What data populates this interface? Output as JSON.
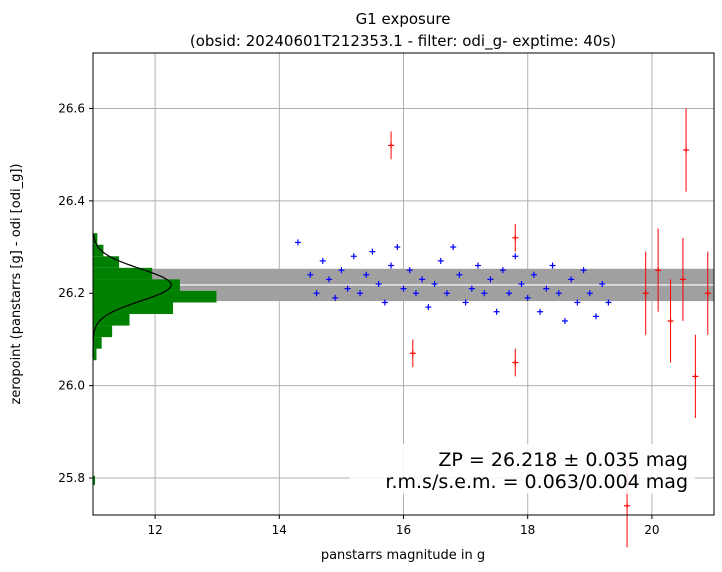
{
  "chart_data": {
    "type": "scatter",
    "title": "G1 exposure",
    "subtitle": "(obsid: 20240601T212353.1 - filter: odi_g- exptime: 40s)",
    "xlabel": "panstarrs magnitude in g",
    "ylabel": "zeropoint (panstarrs [g] - odi [odi_g])",
    "xlim": [
      11.0,
      21.0
    ],
    "ylim": [
      25.72,
      26.72
    ],
    "x_ticks": [
      "12",
      "14",
      "16",
      "18",
      "20"
    ],
    "x_tick_values": [
      12,
      14,
      16,
      18,
      20
    ],
    "y_ticks": [
      "25.8",
      "26.0",
      "26.2",
      "26.4",
      "26.6"
    ],
    "y_tick_values": [
      25.8,
      26.0,
      26.2,
      26.4,
      26.6
    ],
    "grid": true,
    "zeropoint": 26.218,
    "zeropoint_band": [
      26.183,
      26.253
    ],
    "annotation_line1": "ZP = 26.218 ± 0.035 mag",
    "annotation_line2": "r.m.s/s.e.m. = 0.063/0.004 mag",
    "colors": {
      "used_stars": "#0000ff",
      "rejected_stars": "#ff0000",
      "histogram": "#008000",
      "band": "#a0a0a0",
      "zp_line": "#ffffff",
      "gaussian": "#000000"
    },
    "histogram": {
      "y_bins": [
        [
          26.305,
          26.33,
          0.05
        ],
        [
          26.28,
          26.305,
          0.12
        ],
        [
          26.255,
          26.28,
          0.3
        ],
        [
          26.23,
          26.255,
          0.68
        ],
        [
          26.205,
          26.23,
          1.0
        ],
        [
          26.18,
          26.205,
          1.42
        ],
        [
          26.155,
          26.18,
          0.92
        ],
        [
          26.13,
          26.155,
          0.42
        ],
        [
          26.105,
          26.13,
          0.22
        ],
        [
          26.08,
          26.105,
          0.1
        ],
        [
          26.055,
          26.08,
          0.04
        ]
      ],
      "outlier_bin": [
        25.785,
        25.805,
        0.02
      ]
    },
    "used_stars_points": [
      [
        14.3,
        26.31
      ],
      [
        14.5,
        26.24
      ],
      [
        14.6,
        26.2
      ],
      [
        14.7,
        26.27
      ],
      [
        14.8,
        26.23
      ],
      [
        14.9,
        26.19
      ],
      [
        15.0,
        26.25
      ],
      [
        15.1,
        26.21
      ],
      [
        15.2,
        26.28
      ],
      [
        15.3,
        26.2
      ],
      [
        15.4,
        26.24
      ],
      [
        15.5,
        26.29
      ],
      [
        15.6,
        26.22
      ],
      [
        15.7,
        26.18
      ],
      [
        15.8,
        26.26
      ],
      [
        15.9,
        26.3
      ],
      [
        16.0,
        26.21
      ],
      [
        16.1,
        26.25
      ],
      [
        16.2,
        26.2
      ],
      [
        16.3,
        26.23
      ],
      [
        16.4,
        26.17
      ],
      [
        16.5,
        26.22
      ],
      [
        16.6,
        26.27
      ],
      [
        16.7,
        26.2
      ],
      [
        16.8,
        26.3
      ],
      [
        16.9,
        26.24
      ],
      [
        17.0,
        26.18
      ],
      [
        17.1,
        26.21
      ],
      [
        17.2,
        26.26
      ],
      [
        17.3,
        26.2
      ],
      [
        17.4,
        26.23
      ],
      [
        17.5,
        26.16
      ],
      [
        17.6,
        26.25
      ],
      [
        17.7,
        26.2
      ],
      [
        17.8,
        26.28
      ],
      [
        17.9,
        26.22
      ],
      [
        18.0,
        26.19
      ],
      [
        18.1,
        26.24
      ],
      [
        18.2,
        26.16
      ],
      [
        18.3,
        26.21
      ],
      [
        18.4,
        26.26
      ],
      [
        18.5,
        26.2
      ],
      [
        18.6,
        26.14
      ],
      [
        18.7,
        26.23
      ],
      [
        18.8,
        26.18
      ],
      [
        18.9,
        26.25
      ],
      [
        19.0,
        26.2
      ],
      [
        19.1,
        26.15
      ],
      [
        19.2,
        26.22
      ],
      [
        19.3,
        26.18
      ]
    ],
    "rejected_stars_points": [
      [
        15.8,
        26.52
      ],
      [
        16.15,
        26.07
      ],
      [
        17.8,
        26.32
      ],
      [
        17.8,
        26.05
      ],
      [
        19.6,
        25.74
      ],
      [
        19.9,
        26.2
      ],
      [
        20.1,
        26.25
      ],
      [
        20.3,
        26.14
      ],
      [
        20.5,
        26.23
      ],
      [
        20.55,
        26.51
      ],
      [
        20.7,
        26.02
      ],
      [
        20.9,
        26.2
      ]
    ]
  }
}
